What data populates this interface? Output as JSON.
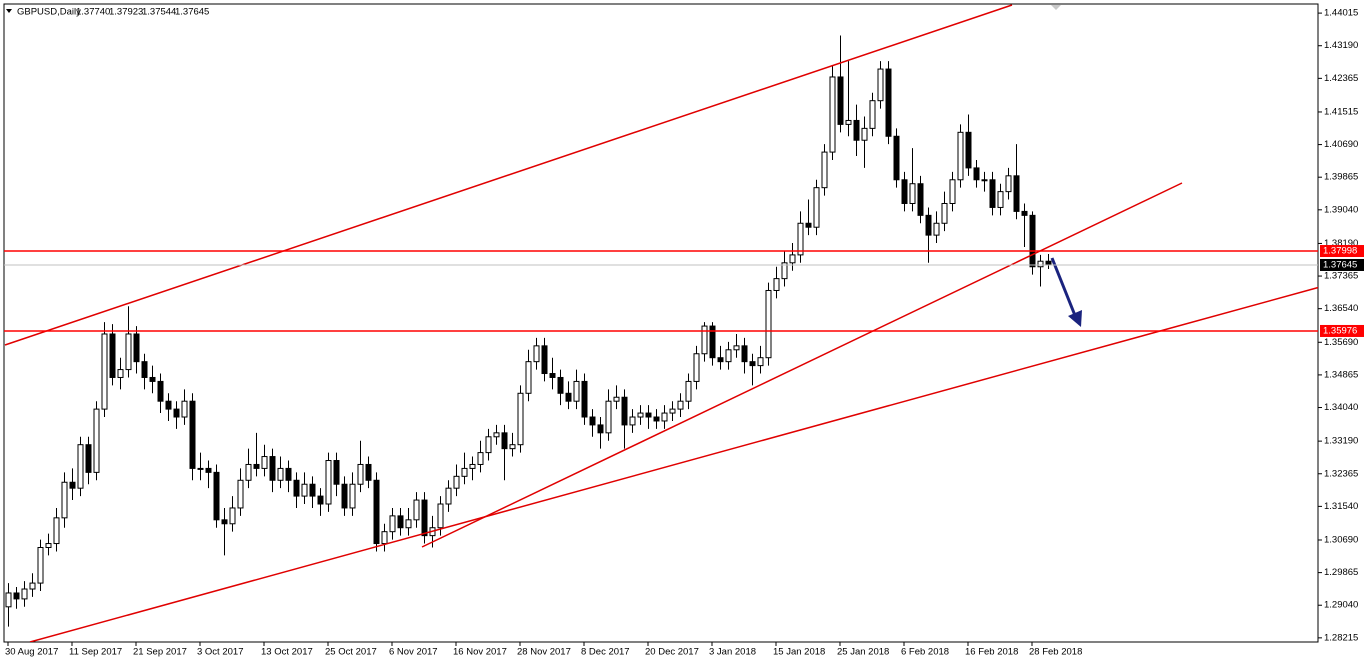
{
  "chart_data": {
    "type": "candlestick",
    "title": "GBPUSD,Daily",
    "header_labels": [
      "1.37740",
      "1.37923",
      "1.37544",
      "1.37645"
    ],
    "categories": [
      "30 Aug 2017",
      null,
      null,
      null,
      null,
      null,
      null,
      null,
      "11 Sep 2017",
      null,
      null,
      null,
      null,
      null,
      null,
      null,
      "21 Sep 2017",
      null,
      null,
      null,
      null,
      null,
      null,
      null,
      "3 Oct 2017",
      null,
      null,
      null,
      null,
      null,
      null,
      null,
      "13 Oct 2017",
      null,
      null,
      null,
      null,
      null,
      null,
      null,
      "25 Oct 2017",
      null,
      null,
      null,
      null,
      null,
      null,
      null,
      "6 Nov 2017",
      null,
      null,
      null,
      null,
      null,
      null,
      null,
      "16 Nov 2017",
      null,
      null,
      null,
      null,
      null,
      null,
      null,
      "28 Nov 2017",
      null,
      null,
      null,
      null,
      null,
      null,
      null,
      "8 Dec 2017",
      null,
      null,
      null,
      null,
      null,
      null,
      null,
      "20 Dec 2017",
      null,
      null,
      null,
      null,
      null,
      null,
      null,
      "3 Jan 2018",
      null,
      null,
      null,
      null,
      null,
      null,
      null,
      "15 Jan 2018",
      null,
      null,
      null,
      null,
      null,
      null,
      null,
      "25 Jan 2018",
      null,
      null,
      null,
      null,
      null,
      null,
      null,
      "6 Feb 2018",
      null,
      null,
      null,
      null,
      null,
      null,
      null,
      "16 Feb 2018",
      null,
      null,
      null,
      null,
      null,
      null,
      null,
      "28 Feb 2018",
      null,
      null
    ],
    "ohlc": [
      [
        1.29,
        1.296,
        1.285,
        1.2935
      ],
      [
        1.2935,
        1.295,
        1.2895,
        1.292
      ],
      [
        1.292,
        1.2965,
        1.29,
        1.2945
      ],
      [
        1.2945,
        1.2985,
        1.2925,
        1.296
      ],
      [
        1.296,
        1.307,
        1.294,
        1.305
      ],
      [
        1.305,
        1.3085,
        1.303,
        1.306
      ],
      [
        1.306,
        1.315,
        1.304,
        1.3125
      ],
      [
        1.3125,
        1.324,
        1.31,
        1.3215
      ],
      [
        1.3215,
        1.325,
        1.317,
        1.32
      ],
      [
        1.32,
        1.333,
        1.318,
        1.331
      ],
      [
        1.331,
        1.333,
        1.321,
        1.324
      ],
      [
        1.324,
        1.342,
        1.322,
        1.34
      ],
      [
        1.34,
        1.362,
        1.338,
        1.359
      ],
      [
        1.359,
        1.3615,
        1.346,
        1.348
      ],
      [
        1.348,
        1.353,
        1.345,
        1.35
      ],
      [
        1.35,
        1.366,
        1.348,
        1.359
      ],
      [
        1.359,
        1.361,
        1.349,
        1.352
      ],
      [
        1.352,
        1.354,
        1.345,
        1.348
      ],
      [
        1.348,
        1.351,
        1.344,
        1.347
      ],
      [
        1.347,
        1.349,
        1.339,
        1.342
      ],
      [
        1.342,
        1.344,
        1.337,
        1.34
      ],
      [
        1.34,
        1.342,
        1.335,
        1.338
      ],
      [
        1.338,
        1.345,
        1.336,
        1.342
      ],
      [
        1.342,
        1.344,
        1.322,
        1.325
      ],
      [
        1.325,
        1.329,
        1.322,
        1.325
      ],
      [
        1.325,
        1.327,
        1.32,
        1.324
      ],
      [
        1.324,
        1.326,
        1.31,
        1.312
      ],
      [
        1.312,
        1.315,
        1.303,
        1.311
      ],
      [
        1.311,
        1.318,
        1.309,
        1.315
      ],
      [
        1.315,
        1.325,
        1.313,
        1.322
      ],
      [
        1.322,
        1.33,
        1.32,
        1.326
      ],
      [
        1.326,
        1.334,
        1.323,
        1.325
      ],
      [
        1.325,
        1.331,
        1.323,
        1.328
      ],
      [
        1.328,
        1.33,
        1.319,
        1.322
      ],
      [
        1.322,
        1.328,
        1.32,
        1.325
      ],
      [
        1.325,
        1.327,
        1.319,
        1.322
      ],
      [
        1.322,
        1.324,
        1.315,
        1.318
      ],
      [
        1.318,
        1.324,
        1.316,
        1.321
      ],
      [
        1.321,
        1.323,
        1.315,
        1.318
      ],
      [
        1.318,
        1.32,
        1.313,
        1.316
      ],
      [
        1.316,
        1.329,
        1.314,
        1.327
      ],
      [
        1.327,
        1.329,
        1.318,
        1.321
      ],
      [
        1.321,
        1.323,
        1.313,
        1.315
      ],
      [
        1.315,
        1.324,
        1.313,
        1.321
      ],
      [
        1.321,
        1.332,
        1.319,
        1.326
      ],
      [
        1.326,
        1.328,
        1.32,
        1.322
      ],
      [
        1.322,
        1.324,
        1.304,
        1.306
      ],
      [
        1.306,
        1.311,
        1.304,
        1.309
      ],
      [
        1.309,
        1.315,
        1.307,
        1.313
      ],
      [
        1.313,
        1.315,
        1.308,
        1.31
      ],
      [
        1.31,
        1.315,
        1.308,
        1.312
      ],
      [
        1.312,
        1.319,
        1.31,
        1.317
      ],
      [
        1.317,
        1.319,
        1.306,
        1.308
      ],
      [
        1.308,
        1.313,
        1.305,
        1.31
      ],
      [
        1.31,
        1.318,
        1.308,
        1.316
      ],
      [
        1.316,
        1.322,
        1.314,
        1.32
      ],
      [
        1.32,
        1.326,
        1.318,
        1.323
      ],
      [
        1.323,
        1.329,
        1.321,
        1.325
      ],
      [
        1.325,
        1.328,
        1.322,
        1.326
      ],
      [
        1.326,
        1.332,
        1.324,
        1.329
      ],
      [
        1.329,
        1.335,
        1.327,
        1.333
      ],
      [
        1.333,
        1.336,
        1.331,
        1.334
      ],
      [
        1.334,
        1.336,
        1.322,
        1.33
      ],
      [
        1.33,
        1.334,
        1.328,
        1.331
      ],
      [
        1.331,
        1.346,
        1.329,
        1.344
      ],
      [
        1.344,
        1.355,
        1.342,
        1.352
      ],
      [
        1.352,
        1.358,
        1.35,
        1.356
      ],
      [
        1.356,
        1.358,
        1.347,
        1.349
      ],
      [
        1.349,
        1.353,
        1.345,
        1.348
      ],
      [
        1.348,
        1.35,
        1.341,
        1.344
      ],
      [
        1.344,
        1.347,
        1.34,
        1.342
      ],
      [
        1.342,
        1.35,
        1.34,
        1.347
      ],
      [
        1.347,
        1.349,
        1.336,
        1.338
      ],
      [
        1.338,
        1.34,
        1.333,
        1.336
      ],
      [
        1.336,
        1.338,
        1.33,
        1.334
      ],
      [
        1.334,
        1.345,
        1.332,
        1.342
      ],
      [
        1.342,
        1.346,
        1.34,
        1.343
      ],
      [
        1.343,
        1.345,
        1.33,
        1.336
      ],
      [
        1.336,
        1.34,
        1.334,
        1.338
      ],
      [
        1.338,
        1.341,
        1.336,
        1.339
      ],
      [
        1.339,
        1.341,
        1.335,
        1.338
      ],
      [
        1.338,
        1.34,
        1.335,
        1.337
      ],
      [
        1.337,
        1.341,
        1.335,
        1.339
      ],
      [
        1.339,
        1.342,
        1.337,
        1.34
      ],
      [
        1.34,
        1.344,
        1.338,
        1.342
      ],
      [
        1.342,
        1.349,
        1.34,
        1.347
      ],
      [
        1.347,
        1.356,
        1.345,
        1.354
      ],
      [
        1.354,
        1.362,
        1.352,
        1.361
      ],
      [
        1.361,
        1.362,
        1.351,
        1.353
      ],
      [
        1.353,
        1.356,
        1.35,
        1.352
      ],
      [
        1.352,
        1.357,
        1.35,
        1.355
      ],
      [
        1.355,
        1.359,
        1.353,
        1.356
      ],
      [
        1.356,
        1.358,
        1.349,
        1.352
      ],
      [
        1.352,
        1.354,
        1.346,
        1.351
      ],
      [
        1.351,
        1.356,
        1.349,
        1.353
      ],
      [
        1.353,
        1.372,
        1.351,
        1.37
      ],
      [
        1.37,
        1.376,
        1.368,
        1.373
      ],
      [
        1.373,
        1.38,
        1.371,
        1.377
      ],
      [
        1.377,
        1.382,
        1.375,
        1.379
      ],
      [
        1.379,
        1.39,
        1.377,
        1.387
      ],
      [
        1.387,
        1.393,
        1.384,
        1.386
      ],
      [
        1.386,
        1.398,
        1.384,
        1.396
      ],
      [
        1.396,
        1.407,
        1.394,
        1.405
      ],
      [
        1.405,
        1.427,
        1.403,
        1.424
      ],
      [
        1.424,
        1.4345,
        1.41,
        1.412
      ],
      [
        1.412,
        1.428,
        1.409,
        1.413
      ],
      [
        1.413,
        1.417,
        1.404,
        1.408
      ],
      [
        1.408,
        1.414,
        1.401,
        1.411
      ],
      [
        1.411,
        1.42,
        1.409,
        1.418
      ],
      [
        1.418,
        1.428,
        1.416,
        1.426
      ],
      [
        1.426,
        1.428,
        1.407,
        1.409
      ],
      [
        1.409,
        1.411,
        1.396,
        1.398
      ],
      [
        1.398,
        1.4,
        1.39,
        1.392
      ],
      [
        1.392,
        1.406,
        1.39,
        1.397
      ],
      [
        1.397,
        1.399,
        1.387,
        1.389
      ],
      [
        1.389,
        1.391,
        1.377,
        1.384
      ],
      [
        1.384,
        1.39,
        1.382,
        1.387
      ],
      [
        1.387,
        1.395,
        1.385,
        1.392
      ],
      [
        1.392,
        1.4,
        1.39,
        1.398
      ],
      [
        1.398,
        1.412,
        1.396,
        1.41
      ],
      [
        1.41,
        1.4145,
        1.399,
        1.401
      ],
      [
        1.401,
        1.403,
        1.396,
        1.398
      ],
      [
        1.398,
        1.4,
        1.395,
        1.398
      ],
      [
        1.398,
        1.4,
        1.389,
        1.391
      ],
      [
        1.391,
        1.397,
        1.389,
        1.395
      ],
      [
        1.395,
        1.401,
        1.393,
        1.399
      ],
      [
        1.399,
        1.407,
        1.388,
        1.39
      ],
      [
        1.39,
        1.392,
        1.381,
        1.389
      ],
      [
        1.389,
        1.39,
        1.374,
        1.376
      ],
      [
        1.376,
        1.379,
        1.371,
        1.3774
      ],
      [
        1.3774,
        1.37923,
        1.37544,
        1.37645
      ]
    ],
    "ylim": [
      1.2811,
      1.4422
    ],
    "yticks": [
      1.44015,
      1.4319,
      1.42365,
      1.41515,
      1.4069,
      1.39865,
      1.3904,
      1.3819,
      1.37365,
      1.3654,
      1.3569,
      1.34865,
      1.3404,
      1.3319,
      1.32365,
      1.3154,
      1.3069,
      1.29865,
      1.2904,
      1.28215
    ],
    "ytick_labels": [
      "1.44015",
      "1.43190",
      "1.42365",
      "1.41515",
      "1.40690",
      "1.39865",
      "1.39040",
      "1.38190",
      "1.37365",
      "1.36540",
      "1.35690",
      "1.34865",
      "1.34040",
      "1.33190",
      "1.32365",
      "1.31540",
      "1.30690",
      "1.29865",
      "1.29040",
      "1.28215"
    ],
    "levels": [
      1.37998,
      1.35976
    ],
    "level_color": "#ff0000",
    "up_color": "#ffffff",
    "down_color": "#000000",
    "price_line_color": "#c0c0c0"
  }
}
